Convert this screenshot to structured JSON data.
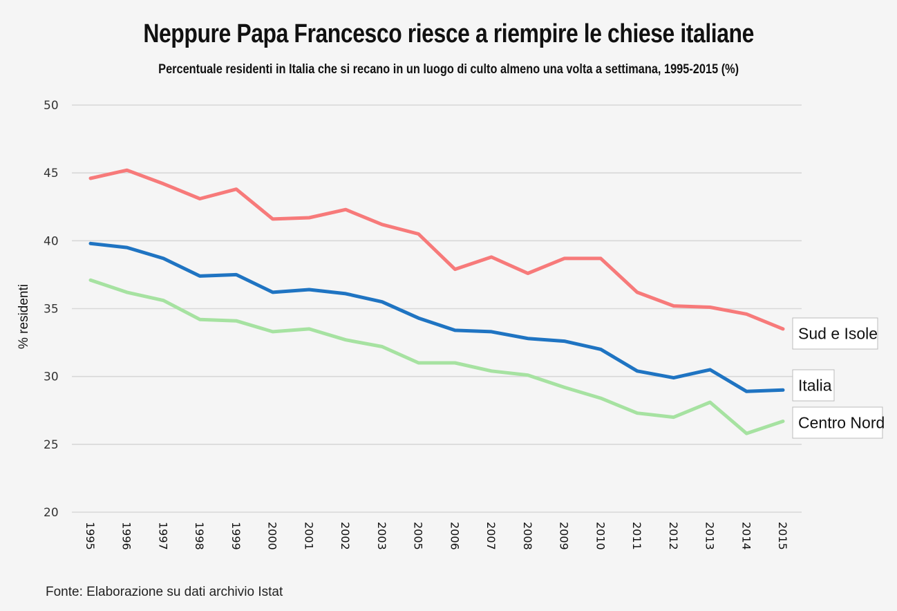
{
  "header": {
    "title": "Neppure Papa Francesco riesce a riempire le chiese italiane",
    "subtitle": "Percentuale residenti in Italia che si recano in un luogo di culto almeno una volta a settimana, 1995-2015 (%)"
  },
  "footer": {
    "source": "Fonte: Elaborazione su dati archivio Istat"
  },
  "chart_data": {
    "type": "line",
    "title": "Neppure Papa Francesco riesce a riempire le chiese italiane",
    "subtitle": "Percentuale residenti in Italia che si recano in un luogo di culto almeno una volta a settimana, 1995-2015 (%)",
    "xlabel": "",
    "ylabel": "% residenti",
    "categories": [
      "1995",
      "1996",
      "1997",
      "1998",
      "1999",
      "2000",
      "2001",
      "2002",
      "2003",
      "2005",
      "2006",
      "2007",
      "2008",
      "2009",
      "2010",
      "2011",
      "2012",
      "2013",
      "2014",
      "2015"
    ],
    "ylim": [
      20,
      50
    ],
    "yticks": [
      20,
      25,
      30,
      35,
      40,
      45,
      50
    ],
    "grid": true,
    "legend": "labels at line ends (right)",
    "series": [
      {
        "name": "Sud e Isole",
        "color": "#f77a7a",
        "values": [
          44.6,
          45.2,
          44.2,
          43.1,
          43.8,
          41.6,
          41.7,
          42.3,
          41.2,
          40.5,
          37.9,
          38.8,
          37.6,
          38.7,
          38.7,
          36.2,
          35.2,
          35.1,
          34.6,
          33.5
        ]
      },
      {
        "name": "Italia",
        "color": "#1f74c2",
        "values": [
          39.8,
          39.5,
          38.7,
          37.4,
          37.5,
          36.2,
          36.4,
          36.1,
          35.5,
          34.3,
          33.4,
          33.3,
          32.8,
          32.6,
          32.0,
          30.4,
          29.9,
          30.5,
          28.9,
          29.0
        ]
      },
      {
        "name": "Centro Nord",
        "color": "#a6e2a1",
        "values": [
          37.1,
          36.2,
          35.6,
          34.2,
          34.1,
          33.3,
          33.5,
          32.7,
          32.2,
          31.0,
          31.0,
          30.4,
          30.1,
          29.2,
          28.4,
          27.3,
          27.0,
          28.1,
          25.8,
          26.7
        ]
      }
    ]
  }
}
